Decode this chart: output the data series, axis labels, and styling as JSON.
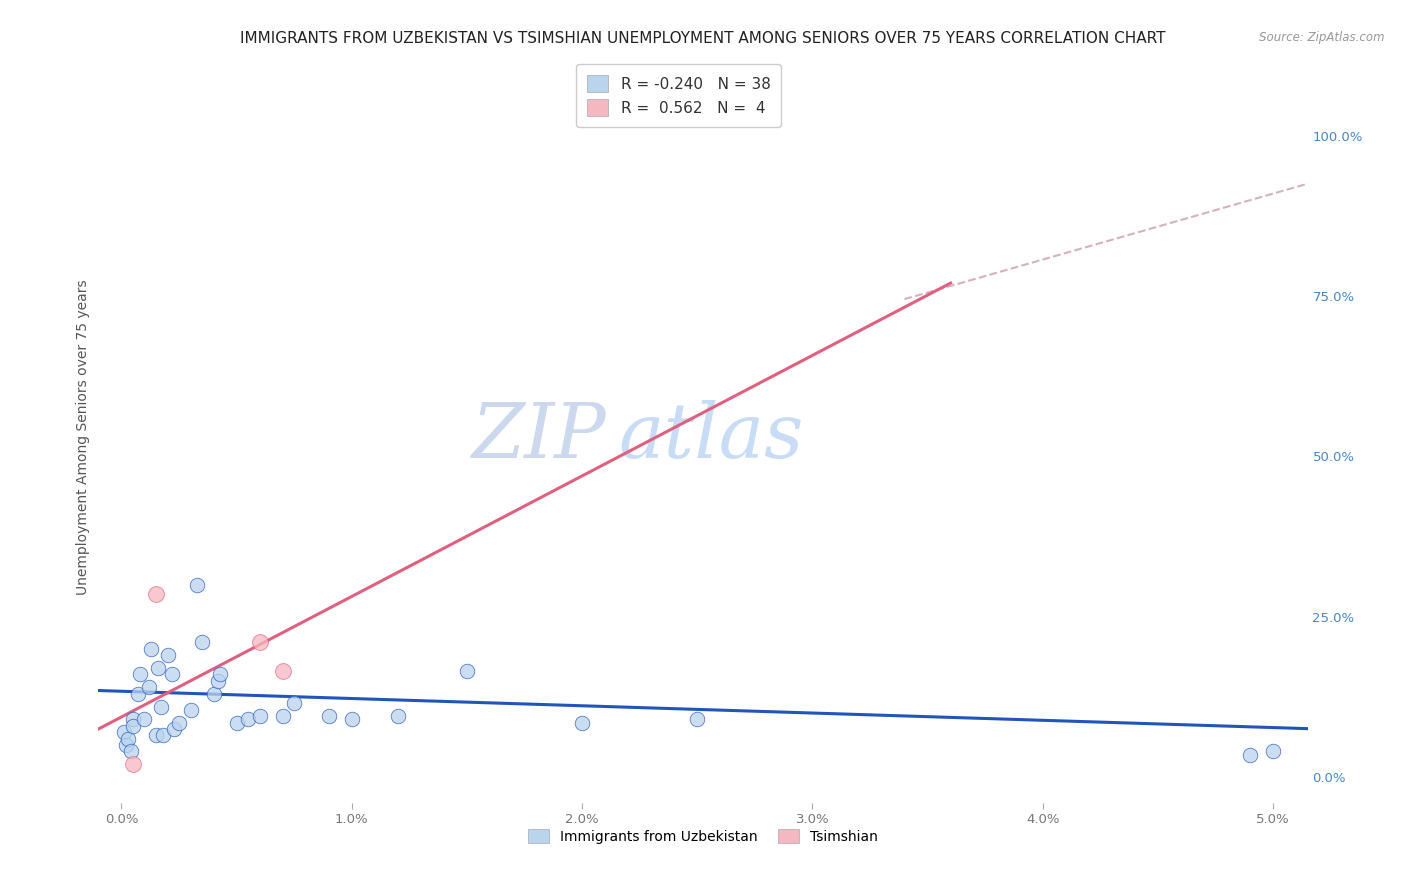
{
  "title": "IMMIGRANTS FROM UZBEKISTAN VS TSIMSHIAN UNEMPLOYMENT AMONG SENIORS OVER 75 YEARS CORRELATION CHART",
  "source": "Source: ZipAtlas.com",
  "ylabel": "Unemployment Among Seniors over 75 years",
  "x_ticks": [
    0.0,
    0.01,
    0.02,
    0.03,
    0.04,
    0.05
  ],
  "x_tick_labels": [
    "0.0%",
    "1.0%",
    "2.0%",
    "3.0%",
    "4.0%",
    "5.0%"
  ],
  "y_ticks_right": [
    0.0,
    0.25,
    0.5,
    0.75,
    1.0
  ],
  "y_tick_labels_right": [
    "0.0%",
    "25.0%",
    "50.0%",
    "75.0%",
    "100.0%"
  ],
  "xlim": [
    -0.001,
    0.0515
  ],
  "ylim": [
    -0.04,
    1.1
  ],
  "legend_label_blue": "R = -0.240   N = 38",
  "legend_label_pink": "R =  0.562   N =  4",
  "blue_scatter_x": [
    0.0001,
    0.0002,
    0.0003,
    0.0004,
    0.0005,
    0.0005,
    0.0007,
    0.0008,
    0.001,
    0.0012,
    0.0013,
    0.0015,
    0.0016,
    0.0017,
    0.0018,
    0.002,
    0.0022,
    0.0023,
    0.0025,
    0.003,
    0.0033,
    0.0035,
    0.004,
    0.0042,
    0.0043,
    0.005,
    0.0055,
    0.006,
    0.007,
    0.0075,
    0.009,
    0.01,
    0.012,
    0.015,
    0.02,
    0.025,
    0.049,
    0.05
  ],
  "blue_scatter_y": [
    0.07,
    0.05,
    0.06,
    0.04,
    0.09,
    0.08,
    0.13,
    0.16,
    0.09,
    0.14,
    0.2,
    0.065,
    0.17,
    0.11,
    0.065,
    0.19,
    0.16,
    0.075,
    0.085,
    0.105,
    0.3,
    0.21,
    0.13,
    0.15,
    0.16,
    0.085,
    0.09,
    0.095,
    0.095,
    0.115,
    0.095,
    0.09,
    0.095,
    0.165,
    0.085,
    0.09,
    0.035,
    0.04
  ],
  "pink_scatter_x": [
    0.0005,
    0.0015,
    0.006,
    0.007
  ],
  "pink_scatter_y": [
    0.02,
    0.285,
    0.21,
    0.165
  ],
  "blue_line_x": [
    -0.001,
    0.052
  ],
  "blue_line_y": [
    0.135,
    0.075
  ],
  "pink_line_x": [
    -0.001,
    0.036
  ],
  "pink_line_y": [
    0.075,
    0.77
  ],
  "dash_line_x": [
    0.034,
    0.052
  ],
  "dash_line_y": [
    0.745,
    0.93
  ],
  "watermark_line1": "ZIP",
  "watermark_line2": "atlas",
  "dot_size_blue": 110,
  "dot_size_pink": 130,
  "blue_dot_color": "#bad4ed",
  "pink_dot_color": "#f5b8c0",
  "blue_line_color": "#2255bb",
  "pink_line_color": "#e06080",
  "dash_line_color": "#d8b0c0",
  "title_fontsize": 11,
  "axis_label_fontsize": 10,
  "tick_fontsize": 9.5,
  "watermark_color_zip": "#ccd8ee",
  "watermark_color_atlas": "#c8ddf5",
  "background_color": "#ffffff",
  "grid_color": "#cccccc"
}
